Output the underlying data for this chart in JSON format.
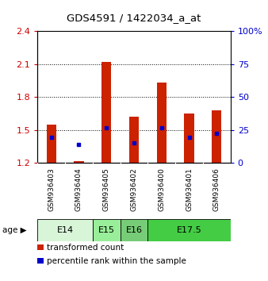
{
  "title": "GDS4591 / 1422034_a_at",
  "samples": [
    "GSM936403",
    "GSM936404",
    "GSM936405",
    "GSM936402",
    "GSM936400",
    "GSM936401",
    "GSM936406"
  ],
  "red_values": [
    1.55,
    1.22,
    2.12,
    1.62,
    1.93,
    1.65,
    1.68
  ],
  "blue_values": [
    1.43,
    1.37,
    1.52,
    1.38,
    1.52,
    1.43,
    1.47
  ],
  "age_groups": [
    {
      "label": "E14",
      "start": 0,
      "end": 1,
      "color": "#d8f5d8"
    },
    {
      "label": "E15",
      "start": 2,
      "end": 2,
      "color": "#aaeaaa"
    },
    {
      "label": "E16",
      "start": 3,
      "end": 3,
      "color": "#88cc88"
    },
    {
      "label": "E17.5",
      "start": 4,
      "end": 6,
      "color": "#44cc44"
    }
  ],
  "ylim": [
    1.2,
    2.4
  ],
  "y_left_ticks": [
    1.2,
    1.5,
    1.8,
    2.1,
    2.4
  ],
  "y_right_ticks": [
    0,
    25,
    50,
    75,
    100
  ],
  "bar_color": "#cc2200",
  "marker_color": "#0000cc",
  "bar_width": 0.35,
  "legend_red_label": "transformed count",
  "legend_blue_label": "percentile rank within the sample",
  "sample_area_color": "#d0d0d0",
  "plot_bg_color": "#ffffff",
  "left_tick_color": "#cc0000",
  "right_tick_color": "#0000cc"
}
